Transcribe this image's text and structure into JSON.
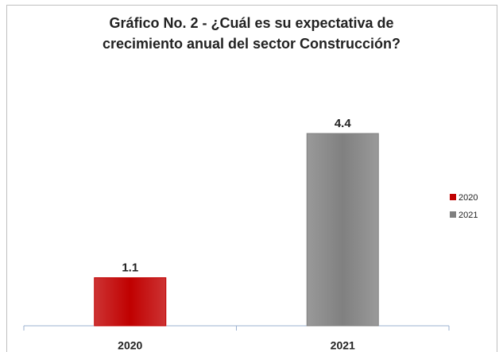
{
  "chart_data": {
    "type": "bar",
    "title": "Gráfico No. 2 - ¿Cuál es su expectativa de crecimiento anual del sector Construcción?",
    "categories": [
      "2020",
      "2021"
    ],
    "series": [
      {
        "name": "2020",
        "color": "#c00000",
        "values": [
          1.1,
          null
        ]
      },
      {
        "name": "2021",
        "color": "#808080",
        "values": [
          null,
          4.4
        ]
      }
    ],
    "ylim": [
      0,
      5
    ],
    "grid": false,
    "legend": "right"
  }
}
